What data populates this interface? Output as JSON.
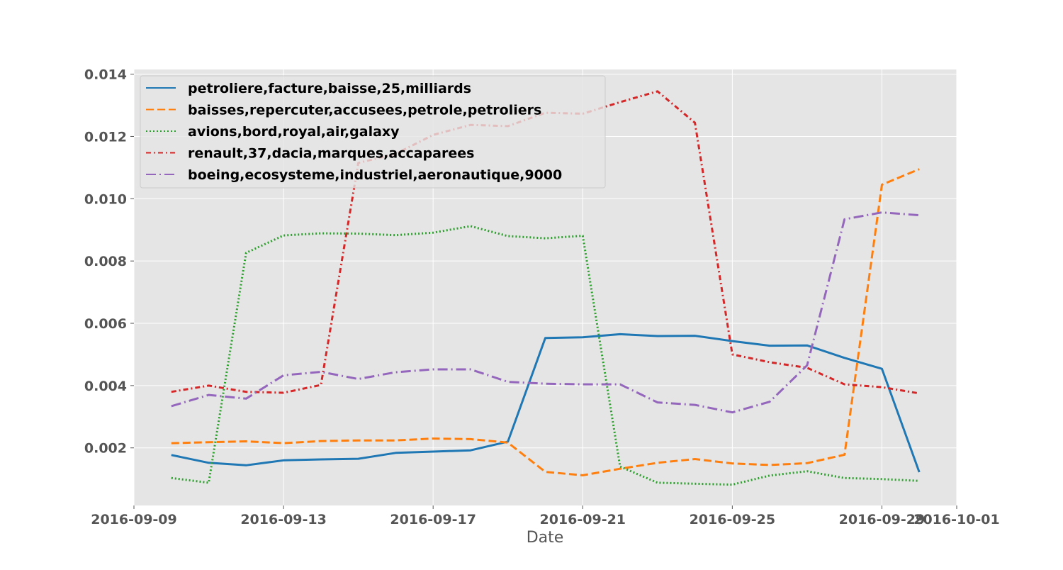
{
  "chart_data": {
    "type": "line",
    "title": "",
    "xlabel": "Date",
    "ylabel": "",
    "xlim": [
      "2016-09-09",
      "2016-10-01"
    ],
    "ylim": [
      0.00015,
      0.01415
    ],
    "grid": true,
    "legend_position": "upper-left",
    "x_ticks": [
      "2016-09-09",
      "2016-09-13",
      "2016-09-17",
      "2016-09-21",
      "2016-09-25",
      "2016-09-29",
      "2016-10-01"
    ],
    "y_ticks": [
      "0.002",
      "0.004",
      "0.006",
      "0.008",
      "0.010",
      "0.012",
      "0.014"
    ],
    "x": [
      "2016-09-10",
      "2016-09-11",
      "2016-09-12",
      "2016-09-13",
      "2016-09-14",
      "2016-09-15",
      "2016-09-16",
      "2016-09-17",
      "2016-09-18",
      "2016-09-19",
      "2016-09-20",
      "2016-09-21",
      "2016-09-22",
      "2016-09-23",
      "2016-09-24",
      "2016-09-25",
      "2016-09-26",
      "2016-09-27",
      "2016-09-28",
      "2016-09-29",
      "2016-09-30"
    ],
    "series": [
      {
        "name": "petroliere,facture,baisse,25,milliards",
        "color": "#1f77b4",
        "style": "solid",
        "values": [
          0.00177,
          0.00152,
          0.00144,
          0.0016,
          0.00163,
          0.00165,
          0.00184,
          0.00188,
          0.00192,
          0.0022,
          0.00553,
          0.00555,
          0.00565,
          0.00559,
          0.0056,
          0.00543,
          0.00528,
          0.00529,
          0.00489,
          0.00454,
          0.00122
        ]
      },
      {
        "name": "baisses,repercuter,accusees,petrole,petroliers",
        "color": "#ff7f0e",
        "style": "dashed",
        "values": [
          0.00215,
          0.00218,
          0.00221,
          0.00215,
          0.00222,
          0.00224,
          0.00224,
          0.0023,
          0.00228,
          0.00217,
          0.00123,
          0.00112,
          0.00133,
          0.00152,
          0.00164,
          0.0015,
          0.00145,
          0.00151,
          0.00178,
          0.01045,
          0.01095
        ]
      },
      {
        "name": "avions,bord,royal,air,galaxy",
        "color": "#2ca02c",
        "style": "dotted",
        "values": [
          0.00103,
          0.00088,
          0.00826,
          0.00882,
          0.00889,
          0.00888,
          0.00883,
          0.00891,
          0.00912,
          0.0088,
          0.00873,
          0.00881,
          0.0014,
          0.00088,
          0.00085,
          0.00082,
          0.00111,
          0.00125,
          0.00103,
          0.001,
          0.00094
        ]
      },
      {
        "name": "renault,37,dacia,marques,accaparees",
        "color": "#d62728",
        "style": "dashdot",
        "values": [
          0.0038,
          0.004,
          0.0038,
          0.00377,
          0.00402,
          0.01115,
          0.01144,
          0.01205,
          0.01237,
          0.01233,
          0.01276,
          0.01273,
          0.0131,
          0.01345,
          0.01244,
          0.005,
          0.00475,
          0.00457,
          0.00404,
          0.00395,
          0.00375
        ]
      },
      {
        "name": "boeing,ecosysteme,industriel,aeronautique,9000",
        "color": "#9467bd",
        "style": "longdashdot",
        "values": [
          0.00334,
          0.0037,
          0.00358,
          0.00433,
          0.00444,
          0.00421,
          0.00443,
          0.00452,
          0.00452,
          0.00412,
          0.00406,
          0.00404,
          0.00404,
          0.00346,
          0.00338,
          0.00314,
          0.00348,
          0.00465,
          0.00934,
          0.00956,
          0.00947
        ]
      }
    ]
  }
}
